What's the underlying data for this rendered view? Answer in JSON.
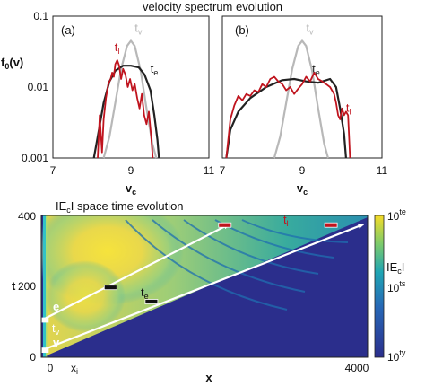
{
  "colors": {
    "t_l": "#c0141e",
    "t_v": "#b8b8b8",
    "t_e": "#222222",
    "arrow": "#ffffff",
    "colormap_low": "#2b2e8c",
    "colormap_mid": "#1fa5b4",
    "colormap_high": "#f5dc28"
  },
  "chart_data": [
    {
      "type": "line",
      "title": "velocity spectrum evolution",
      "panel_label": "(a)",
      "xlabel": "v",
      "xlabel_sub": "c",
      "ylabel": "f",
      "ylabel_sub": "0",
      "ylabel_suffix": "(v)",
      "x_ticks": [
        "7",
        "9",
        "11"
      ],
      "y_ticks": [
        "0.1",
        "0.01",
        "0.001"
      ],
      "xlim": [
        7,
        11
      ],
      "ylim": [
        0.001,
        0.1
      ],
      "y_scale": "log",
      "series": [
        {
          "name": "t",
          "name_sub": "v",
          "color": "#b8b8b8",
          "label_pos": [
            9.1,
            0.06
          ],
          "points": [
            [
              8.3,
              0.001
            ],
            [
              8.45,
              0.002
            ],
            [
              8.6,
              0.006
            ],
            [
              8.75,
              0.018
            ],
            [
              8.9,
              0.038
            ],
            [
              9.0,
              0.045
            ],
            [
              9.1,
              0.038
            ],
            [
              9.25,
              0.017
            ],
            [
              9.4,
              0.005
            ],
            [
              9.55,
              0.0016
            ],
            [
              9.65,
              0.001
            ]
          ]
        },
        {
          "name": "t",
          "name_sub": "e",
          "color": "#222222",
          "label_pos": [
            9.5,
            0.016
          ],
          "points": [
            [
              8.05,
              0.001
            ],
            [
              8.15,
              0.002
            ],
            [
              8.3,
              0.006
            ],
            [
              8.45,
              0.012
            ],
            [
              8.6,
              0.017
            ],
            [
              8.8,
              0.02
            ],
            [
              9.0,
              0.02
            ],
            [
              9.2,
              0.019
            ],
            [
              9.35,
              0.015
            ],
            [
              9.5,
              0.009
            ],
            [
              9.6,
              0.004
            ],
            [
              9.68,
              0.0018
            ],
            [
              9.72,
              0.001
            ]
          ]
        },
        {
          "name": "t",
          "name_sub": "l",
          "color": "#c0141e",
          "label_pos": [
            8.58,
            0.032
          ],
          "points": [
            [
              8.15,
              0.001
            ],
            [
              8.2,
              0.004
            ],
            [
              8.26,
              0.0012
            ],
            [
              8.3,
              0.0035
            ],
            [
              8.36,
              0.007
            ],
            [
              8.42,
              0.011
            ],
            [
              8.48,
              0.013
            ],
            [
              8.52,
              0.016
            ],
            [
              8.56,
              0.014
            ],
            [
              8.6,
              0.021
            ],
            [
              8.65,
              0.024
            ],
            [
              8.7,
              0.02
            ],
            [
              8.75,
              0.013
            ],
            [
              8.8,
              0.018
            ],
            [
              8.86,
              0.015
            ],
            [
              8.92,
              0.01
            ],
            [
              8.98,
              0.013
            ],
            [
              9.04,
              0.009
            ],
            [
              9.1,
              0.011
            ],
            [
              9.16,
              0.007
            ],
            [
              9.22,
              0.005
            ],
            [
              9.28,
              0.008
            ],
            [
              9.34,
              0.004
            ],
            [
              9.4,
              0.003
            ],
            [
              9.46,
              0.0045
            ],
            [
              9.52,
              0.002
            ],
            [
              9.56,
              0.001
            ]
          ]
        }
      ]
    },
    {
      "type": "line",
      "panel_label": "(b)",
      "xlabel": "v",
      "xlabel_sub": "c",
      "x_ticks": [
        "7",
        "9",
        "11"
      ],
      "xlim": [
        7,
        11
      ],
      "ylim": [
        0.001,
        0.1
      ],
      "y_scale": "log",
      "series": [
        {
          "name": "t",
          "name_sub": "v",
          "color": "#b8b8b8",
          "label_pos": [
            9.1,
            0.06
          ],
          "points": [
            [
              8.3,
              0.001
            ],
            [
              8.45,
              0.002
            ],
            [
              8.6,
              0.006
            ],
            [
              8.75,
              0.018
            ],
            [
              8.9,
              0.038
            ],
            [
              9.0,
              0.045
            ],
            [
              9.1,
              0.038
            ],
            [
              9.25,
              0.017
            ],
            [
              9.4,
              0.005
            ],
            [
              9.55,
              0.0016
            ],
            [
              9.65,
              0.001
            ]
          ]
        },
        {
          "name": "t",
          "name_sub": "e",
          "color": "#222222",
          "label_pos": [
            9.25,
            0.016
          ],
          "points": [
            [
              7.1,
              0.001
            ],
            [
              7.2,
              0.0025
            ],
            [
              7.4,
              0.0045
            ],
            [
              7.7,
              0.007
            ],
            [
              8.1,
              0.01
            ],
            [
              8.5,
              0.0125
            ],
            [
              8.8,
              0.013
            ],
            [
              9.1,
              0.012
            ],
            [
              9.4,
              0.0115
            ],
            [
              9.7,
              0.013
            ],
            [
              9.85,
              0.01
            ],
            [
              9.95,
              0.005
            ],
            [
              10.05,
              0.0022
            ],
            [
              10.1,
              0.001
            ]
          ]
        },
        {
          "name": "t",
          "name_sub": "l",
          "color": "#c0141e",
          "label_pos": [
            10.1,
            0.0045
          ],
          "points": [
            [
              7.1,
              0.001
            ],
            [
              7.2,
              0.0035
            ],
            [
              7.3,
              0.0055
            ],
            [
              7.4,
              0.0075
            ],
            [
              7.5,
              0.0065
            ],
            [
              7.6,
              0.008
            ],
            [
              7.7,
              0.0075
            ],
            [
              7.8,
              0.009
            ],
            [
              7.9,
              0.0085
            ],
            [
              8.0,
              0.011
            ],
            [
              8.1,
              0.01
            ],
            [
              8.2,
              0.013
            ],
            [
              8.3,
              0.014
            ],
            [
              8.4,
              0.012
            ],
            [
              8.5,
              0.011
            ],
            [
              8.6,
              0.009
            ],
            [
              8.7,
              0.01
            ],
            [
              8.8,
              0.008
            ],
            [
              8.9,
              0.0095
            ],
            [
              9.0,
              0.011
            ],
            [
              9.1,
              0.014
            ],
            [
              9.2,
              0.012
            ],
            [
              9.3,
              0.016
            ],
            [
              9.4,
              0.013
            ],
            [
              9.5,
              0.012
            ],
            [
              9.6,
              0.011
            ],
            [
              9.7,
              0.01
            ],
            [
              9.8,
              0.008
            ],
            [
              9.85,
              0.006
            ],
            [
              9.9,
              0.004
            ],
            [
              9.95,
              0.0035
            ],
            [
              10.0,
              0.005
            ],
            [
              10.05,
              0.004
            ],
            [
              10.1,
              0.0045
            ],
            [
              10.15,
              0.004
            ],
            [
              10.2,
              0.001
            ]
          ]
        }
      ]
    },
    {
      "type": "heatmap",
      "title_prefix": "IE",
      "title_sub": "c",
      "title_suffix": "I space time evolution",
      "xlabel": "x",
      "ylabel": "t",
      "xlim": [
        0,
        4000
      ],
      "ylim": [
        0,
        400
      ],
      "x_ticks": [
        "0",
        "x",
        "4000"
      ],
      "x_tick_sub": "i",
      "y_ticks": [
        "400",
        "200",
        "0"
      ],
      "colorbar": {
        "label_prefix": "IE",
        "label_sub": "c",
        "label_suffix": "I",
        "ticks": [
          {
            "base": "10",
            "exp": "te"
          },
          {
            "base": "10",
            "exp": "ts"
          },
          {
            "base": "10",
            "exp": "ty"
          }
        ]
      },
      "annotations": {
        "e": {
          "text": "e"
        },
        "t_v": {
          "text": "t",
          "sub": "v"
        },
        "v": {
          "text": "v"
        },
        "t_e": {
          "text": "t",
          "sub": "e"
        },
        "t_l": {
          "text": "t",
          "sub": "l"
        }
      },
      "arrows": [
        {
          "from": [
            10,
            105
          ],
          "to": [
            2300,
            375
          ]
        },
        {
          "from": [
            10,
            20
          ],
          "to": [
            3950,
            375
          ]
        }
      ],
      "markers": [
        {
          "x": 10,
          "t": 105,
          "color": "#ffffff"
        },
        {
          "x": 10,
          "t": 20,
          "color": "#ffffff"
        },
        {
          "x": 850,
          "t": 197,
          "color": "#111111"
        },
        {
          "x": 1350,
          "t": 157,
          "color": "#111111"
        },
        {
          "x": 2250,
          "t": 373,
          "color": "#c0141e"
        },
        {
          "x": 3550,
          "t": 373,
          "color": "#c0141e"
        }
      ]
    }
  ]
}
